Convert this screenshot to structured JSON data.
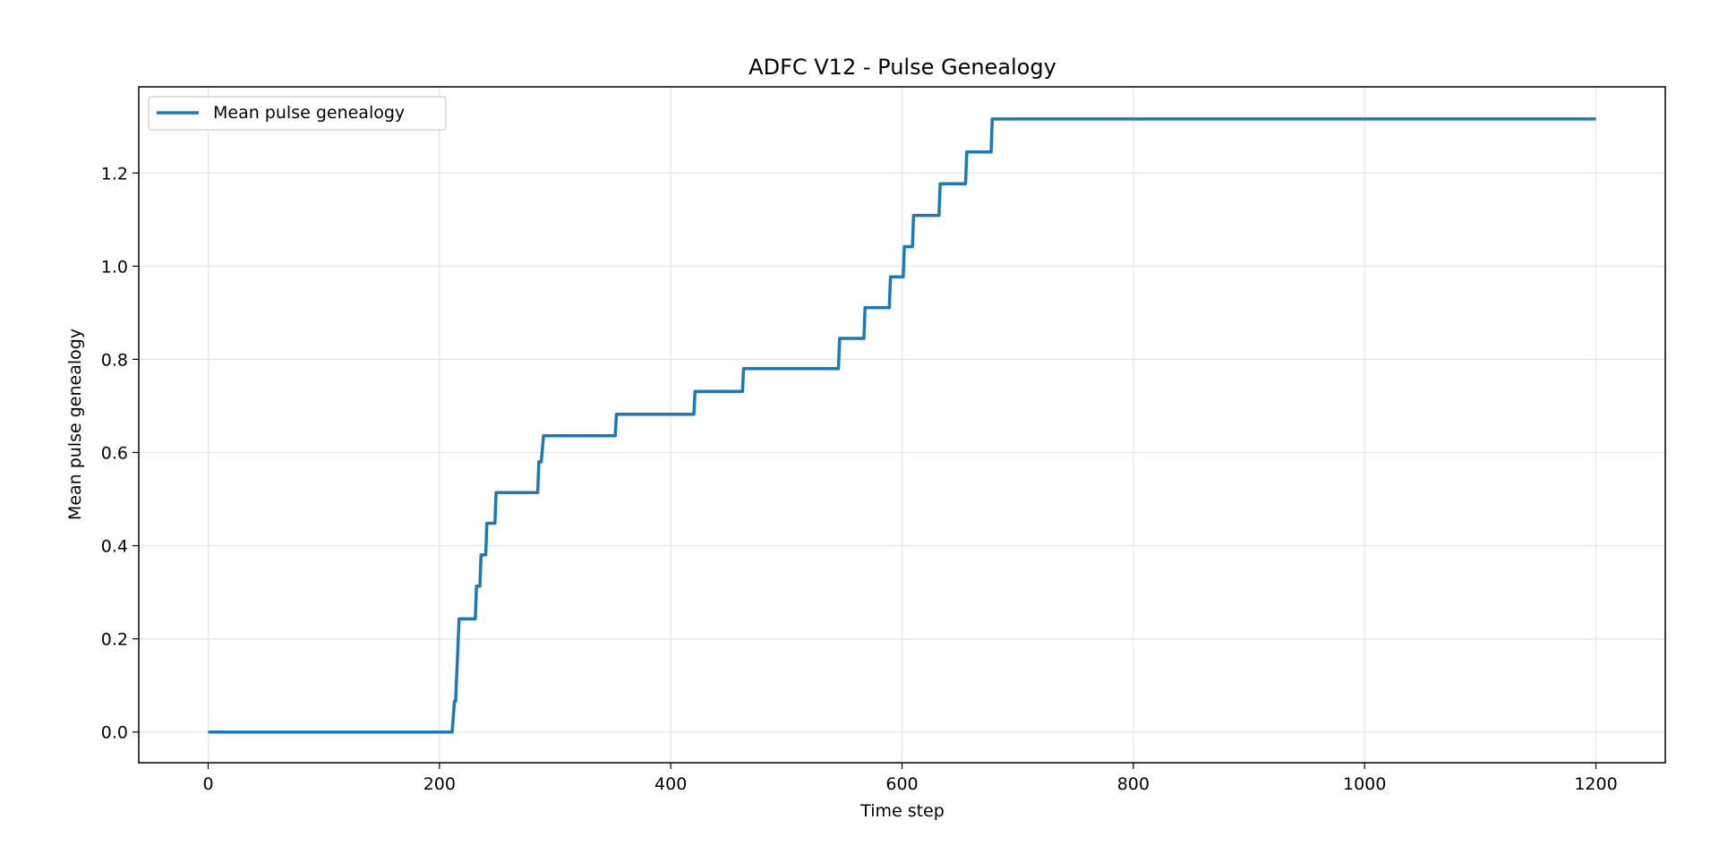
{
  "chart_data": {
    "type": "line",
    "title": "ADFC V12 - Pulse Genealogy",
    "xlabel": "Time step",
    "ylabel": "Mean pulse genealogy",
    "xlim": [
      -60,
      1260
    ],
    "ylim": [
      -0.066,
      1.385
    ],
    "x_ticks": [
      0,
      200,
      400,
      600,
      800,
      1000,
      1200
    ],
    "y_ticks": [
      0.0,
      0.2,
      0.4,
      0.6,
      0.8,
      1.0,
      1.2
    ],
    "x_tick_labels": [
      "0",
      "200",
      "400",
      "600",
      "800",
      "1000",
      "1200"
    ],
    "y_tick_labels": [
      "0.0",
      "0.2",
      "0.4",
      "0.6",
      "0.8",
      "1.0",
      "1.2"
    ],
    "grid": true,
    "legend_position": "top-left",
    "colors": {
      "series": "#1f77b4",
      "grid": "#e6e6e6",
      "axes": "#000000"
    },
    "series": [
      {
        "name": "Mean pulse genealogy",
        "x": [
          0,
          211,
          213,
          214,
          217,
          231,
          232,
          235,
          236,
          240,
          241,
          248,
          249,
          285,
          286,
          288,
          290,
          352,
          353,
          420,
          421,
          462,
          463,
          545,
          546,
          567,
          568,
          589,
          590,
          601,
          602,
          609,
          610,
          632,
          633,
          655,
          656,
          677,
          678,
          1200
        ],
        "y": [
          0.0,
          0.0,
          0.066,
          0.066,
          0.243,
          0.243,
          0.313,
          0.313,
          0.38,
          0.38,
          0.448,
          0.448,
          0.514,
          0.514,
          0.58,
          0.58,
          0.636,
          0.636,
          0.682,
          0.682,
          0.731,
          0.731,
          0.78,
          0.78,
          0.845,
          0.845,
          0.911,
          0.911,
          0.977,
          0.977,
          1.042,
          1.042,
          1.109,
          1.109,
          1.177,
          1.177,
          1.245,
          1.245,
          1.316,
          1.316
        ]
      }
    ]
  }
}
